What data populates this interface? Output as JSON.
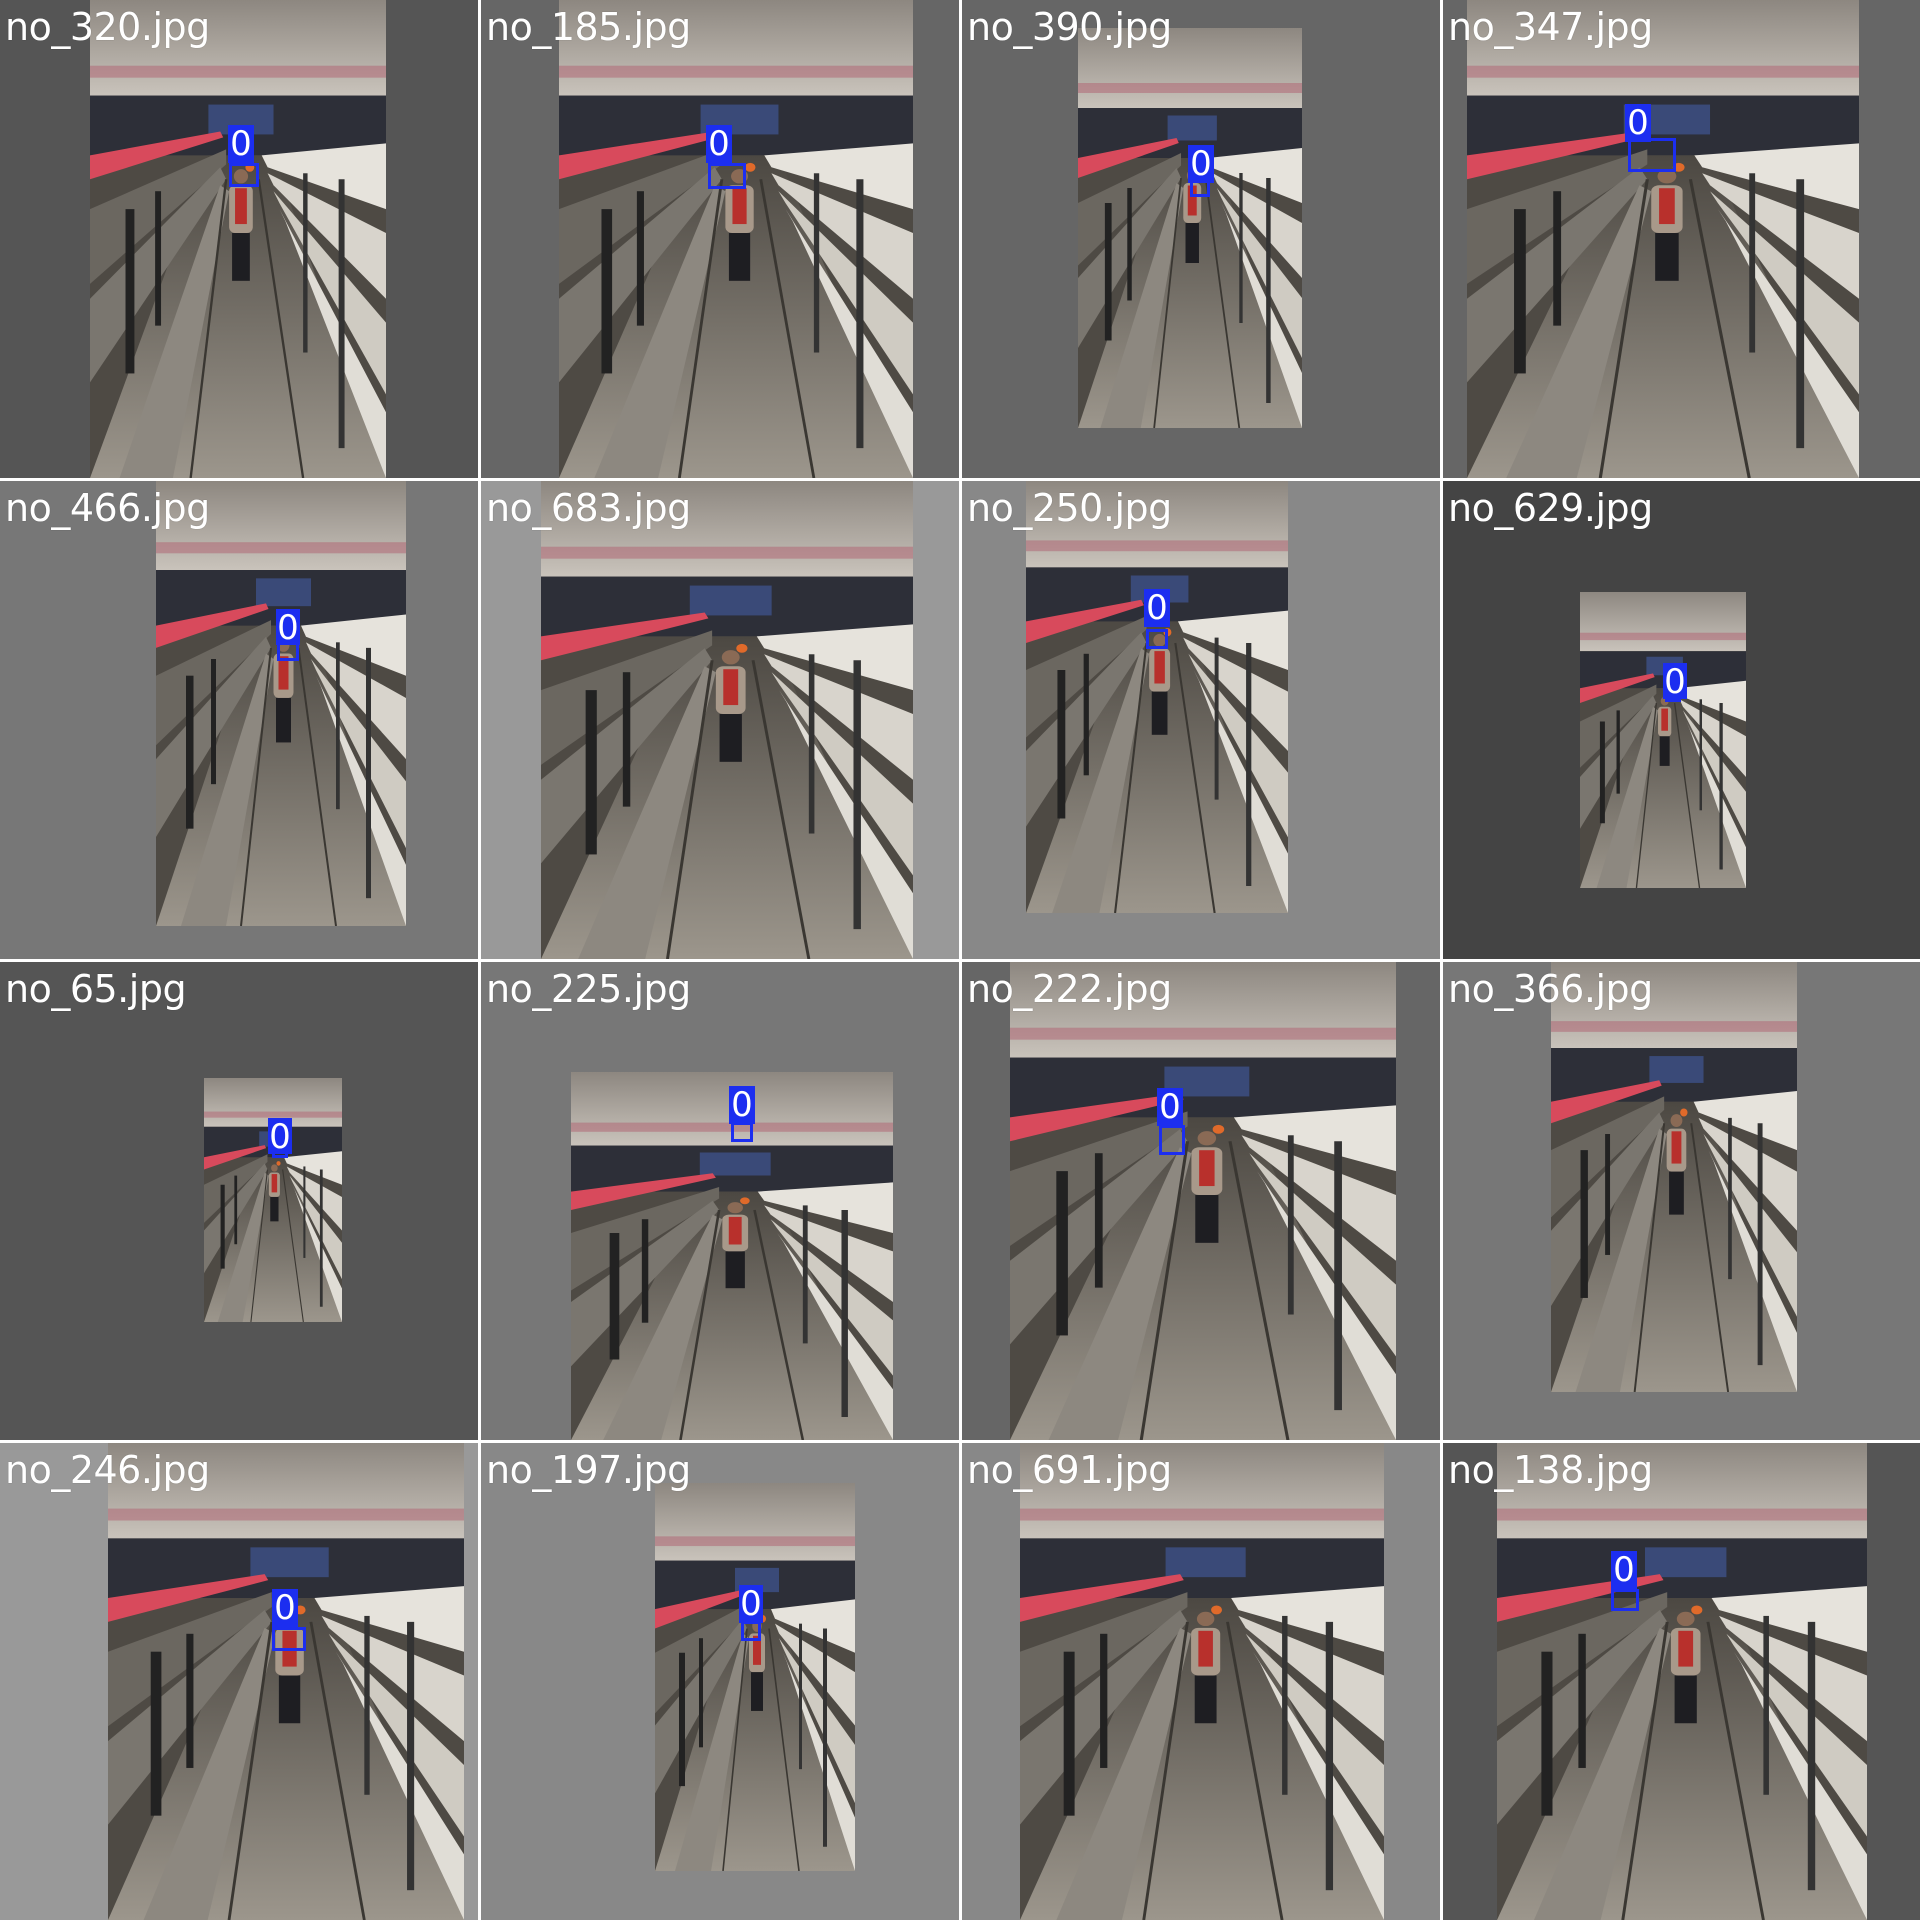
{
  "grid": {
    "tiles": [
      {
        "filename": "no_320.jpg",
        "background": "#555555",
        "detection_class": "0"
      },
      {
        "filename": "no_185.jpg",
        "background": "#666666",
        "detection_class": "0"
      },
      {
        "filename": "no_390.jpg",
        "background": "#666666",
        "detection_class": "0"
      },
      {
        "filename": "no_347.jpg",
        "background": "#666666",
        "detection_class": "0"
      },
      {
        "filename": "no_466.jpg",
        "background": "#777777",
        "detection_class": "0"
      },
      {
        "filename": "no_683.jpg",
        "background": "#999999",
        "detection_class": null
      },
      {
        "filename": "no_250.jpg",
        "background": "#888888",
        "detection_class": "0"
      },
      {
        "filename": "no_629.jpg",
        "background": "#444444",
        "detection_class": "0"
      },
      {
        "filename": "no_65.jpg",
        "background": "#555555",
        "detection_class": "0"
      },
      {
        "filename": "no_225.jpg",
        "background": "#777777",
        "detection_class": "0"
      },
      {
        "filename": "no_222.jpg",
        "background": "#666666",
        "detection_class": "0"
      },
      {
        "filename": "no_366.jpg",
        "background": "#777777",
        "detection_class": null
      },
      {
        "filename": "no_246.jpg",
        "background": "#999999",
        "detection_class": "0"
      },
      {
        "filename": "no_197.jpg",
        "background": "#888888",
        "detection_class": "0"
      },
      {
        "filename": "no_691.jpg",
        "background": "#888888",
        "detection_class": null
      },
      {
        "filename": "no_138.jpg",
        "background": "#555555",
        "detection_class": "0"
      }
    ]
  },
  "colors": {
    "box": "#1c2ef0",
    "label_text": "#ffffff",
    "divider": "#ffffff"
  }
}
